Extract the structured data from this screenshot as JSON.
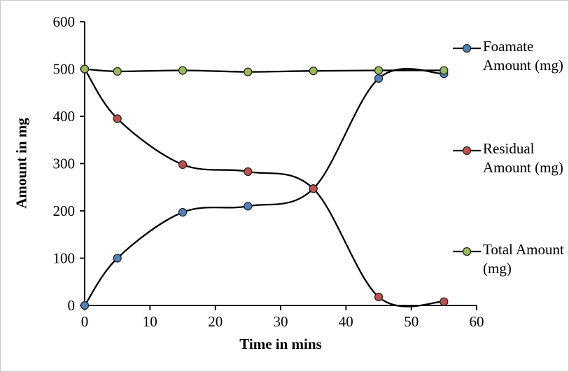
{
  "chart_data": {
    "type": "line",
    "title": "",
    "xlabel": "Time in mins",
    "ylabel": "Amount in mg",
    "x": [
      0,
      5,
      15,
      25,
      35,
      45,
      55
    ],
    "series": [
      {
        "name": "Foamate Amount (mg)",
        "values": [
          0,
          100,
          197,
          210,
          247,
          480,
          490
        ],
        "marker_color": "#4F81BD"
      },
      {
        "name": "Residual Amount (mg)",
        "values": [
          500,
          395,
          298,
          283,
          247,
          18,
          8
        ],
        "marker_color": "#C0504D"
      },
      {
        "name": "Total Amount (mg)",
        "values": [
          500,
          495,
          497,
          494,
          496,
          497,
          497
        ],
        "marker_color": "#9BBB59"
      }
    ],
    "line_color": "#000000",
    "marker_outline_color": "#262626",
    "xlim": [
      0,
      60
    ],
    "ylim": [
      0,
      600
    ],
    "x_ticks": [
      0,
      10,
      20,
      30,
      40,
      50,
      60
    ],
    "y_ticks": [
      0,
      100,
      200,
      300,
      400,
      500,
      600
    ],
    "grid": false,
    "smooth": true,
    "legend_position": "right"
  }
}
